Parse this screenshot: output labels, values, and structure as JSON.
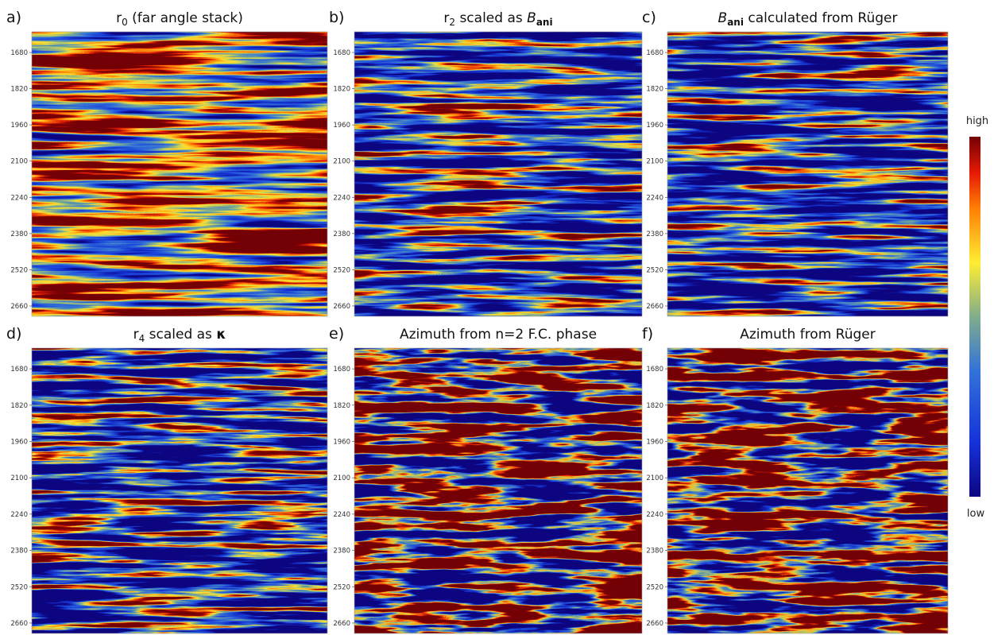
{
  "ylim": [
    1600,
    2700
  ],
  "yticks": [
    1680,
    1820,
    1960,
    2100,
    2240,
    2380,
    2520,
    2660
  ],
  "colorbar": {
    "high": "high",
    "low": "low"
  },
  "panels": [
    {
      "label": "a)",
      "title": [
        {
          "text": "r"
        },
        {
          "text": "0",
          "sub": true
        },
        {
          "text": " (far angle stack)"
        }
      ]
    },
    {
      "label": "b)",
      "title": [
        {
          "text": "r"
        },
        {
          "text": "2",
          "sub": true
        },
        {
          "text": " scaled as "
        },
        {
          "text": "B",
          "italic": true
        },
        {
          "text": "ani",
          "sub": true,
          "bold": true
        }
      ]
    },
    {
      "label": "c)",
      "title": [
        {
          "text": "B",
          "italic": true
        },
        {
          "text": "ani",
          "sub": true,
          "bold": true
        },
        {
          "text": " calculated from Rüger"
        }
      ]
    },
    {
      "label": "d)",
      "title": [
        {
          "text": "r"
        },
        {
          "text": "4",
          "sub": true
        },
        {
          "text": " scaled as "
        },
        {
          "text": "κ",
          "bold": true
        }
      ]
    },
    {
      "label": "e)",
      "title": [
        {
          "text": "Azimuth from n=2 F.C. phase"
        }
      ]
    },
    {
      "label": "f)",
      "title": [
        {
          "text": "Azimuth from Rüger"
        }
      ]
    }
  ]
}
